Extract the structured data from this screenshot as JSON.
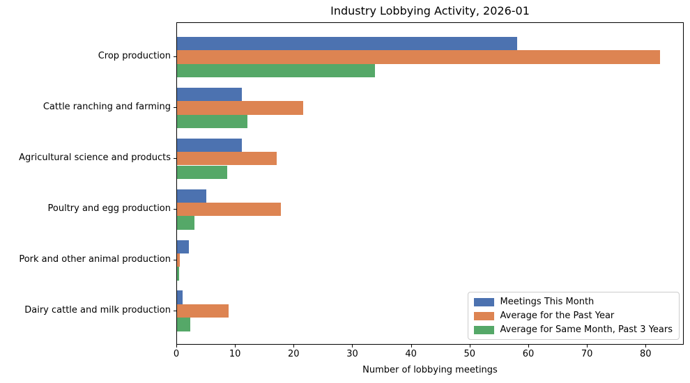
{
  "chart_data": {
    "type": "bar",
    "orientation": "horizontal",
    "title": "Industry Lobbying Activity, 2026-01",
    "xlabel": "Number of lobbying meetings",
    "ylabel": "",
    "categories": [
      "Crop production",
      "Cattle ranching and farming",
      "Agricultural science and products",
      "Poultry and egg production",
      "Pork and other animal production",
      "Dairy cattle and milk production"
    ],
    "series": [
      {
        "name": "Meetings This Month",
        "color": "#4C72B0",
        "values": [
          58,
          11,
          11,
          5,
          2,
          1
        ]
      },
      {
        "name": "Average for the Past Year",
        "color": "#DD8452",
        "values": [
          82.4,
          21.5,
          17.0,
          17.7,
          0.5,
          8.8
        ]
      },
      {
        "name": "Average for Same Month, Past 3 Years",
        "color": "#55A868",
        "values": [
          33.8,
          12.0,
          8.6,
          3.0,
          0.35,
          2.3
        ]
      }
    ],
    "xlim": [
      0,
      86.5
    ],
    "xticks": [
      0,
      10,
      20,
      30,
      40,
      50,
      60,
      70,
      80
    ],
    "grid": false,
    "legend_position": "lower right",
    "frame_color": "#000000",
    "legend_border_color": "#cccccc"
  }
}
